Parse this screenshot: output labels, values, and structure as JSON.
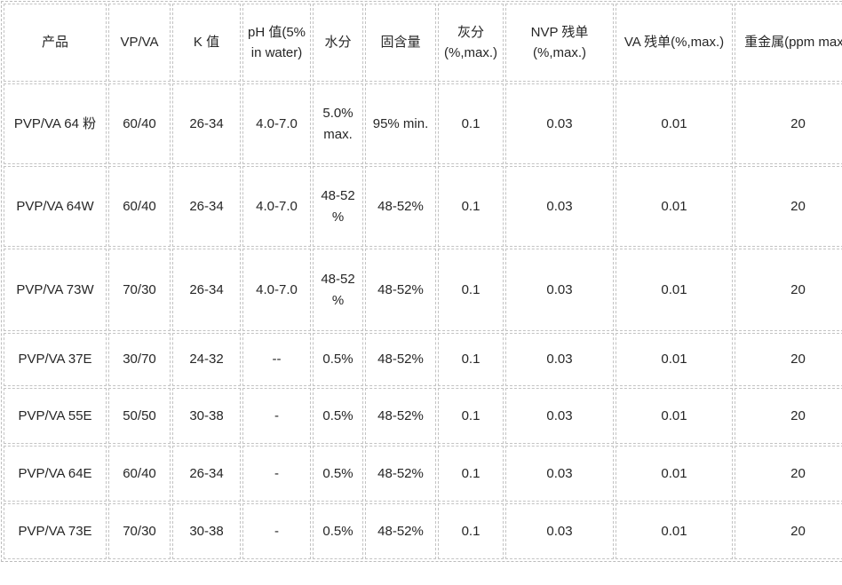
{
  "table": {
    "columns": [
      "产品",
      "VP/VA",
      "K 值",
      "pH 值(5% in water)",
      "水分",
      "固含量",
      "灰分 (%,max.)",
      "NVP 残单 (%,max.)",
      "VA 残单(%,max.)",
      "重金属(ppm max.)"
    ],
    "rows": [
      [
        "PVP/VA 64 粉",
        "60/40",
        "26-34",
        "4.0-7.0",
        "5.0% max.",
        "95% min.",
        "0.1",
        "0.03",
        "0.01",
        "20"
      ],
      [
        "PVP/VA 64W",
        "60/40",
        "26-34",
        "4.0-7.0",
        "48-52 %",
        "48-52%",
        "0.1",
        "0.03",
        "0.01",
        "20"
      ],
      [
        "PVP/VA 73W",
        "70/30",
        "26-34",
        "4.0-7.0",
        "48-52 %",
        "48-52%",
        "0.1",
        "0.03",
        "0.01",
        "20"
      ],
      [
        "PVP/VA 37E",
        "30/70",
        "24-32",
        "--",
        "0.5%",
        "48-52%",
        "0.1",
        "0.03",
        "0.01",
        "20"
      ],
      [
        "PVP/VA 55E",
        "50/50",
        "30-38",
        "-",
        "0.5%",
        "48-52%",
        "0.1",
        "0.03",
        "0.01",
        "20"
      ],
      [
        "PVP/VA 64E",
        "60/40",
        "26-34",
        "-",
        "0.5%",
        "48-52%",
        "0.1",
        "0.03",
        "0.01",
        "20"
      ],
      [
        "PVP/VA 73E",
        "70/30",
        "30-38",
        "-",
        "0.5%",
        "48-52%",
        "0.1",
        "0.03",
        "0.01",
        "20"
      ]
    ],
    "colors": {
      "border": "#c3c3c3",
      "text": "#262626",
      "background": "#ffffff"
    }
  }
}
